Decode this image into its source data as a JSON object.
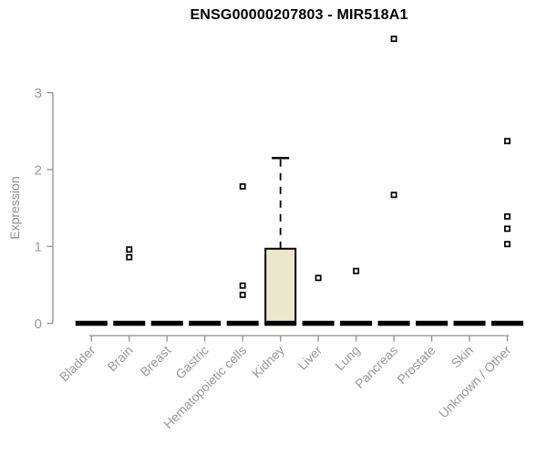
{
  "chart_data": {
    "type": "boxplot",
    "title": "ENSG00000207803 - MIR518A1",
    "ylabel": "Expression",
    "xlabel": "",
    "ylim": [
      0,
      3
    ],
    "yticks": [
      0,
      1,
      2,
      3
    ],
    "grid": false,
    "legend": false,
    "colors": {
      "box_fill": "#ECE8CE",
      "box_stroke": "#000000",
      "axis_line": "#8f8f8f",
      "axis_text": "#989898",
      "title_text": "#000000",
      "outlier_fill": "#ffffff",
      "outlier_stroke": "#000000"
    },
    "categories": [
      "Bladder",
      "Brain",
      "Breast",
      "Gastric",
      "Hematopoietic cells",
      "Kidney",
      "Liver",
      "Lung",
      "Pancreas",
      "Prostate",
      "Skin",
      "Unknown / Other"
    ],
    "groups": [
      {
        "label": "Bladder",
        "q1": 0,
        "median": 0,
        "q3": 0,
        "whisker_low": 0,
        "whisker_high": 0,
        "outliers": []
      },
      {
        "label": "Brain",
        "q1": 0,
        "median": 0,
        "q3": 0,
        "whisker_low": 0,
        "whisker_high": 0,
        "outliers": [
          0.96,
          0.86
        ]
      },
      {
        "label": "Breast",
        "q1": 0,
        "median": 0,
        "q3": 0,
        "whisker_low": 0,
        "whisker_high": 0,
        "outliers": []
      },
      {
        "label": "Gastric",
        "q1": 0,
        "median": 0,
        "q3": 0,
        "whisker_low": 0,
        "whisker_high": 0,
        "outliers": []
      },
      {
        "label": "Hematopoietic cells",
        "q1": 0,
        "median": 0,
        "q3": 0,
        "whisker_low": 0,
        "whisker_high": 0,
        "outliers": [
          1.78,
          0.49,
          0.37
        ]
      },
      {
        "label": "Kidney",
        "q1": 0,
        "median": 0,
        "q3": 0.97,
        "whisker_low": 0,
        "whisker_high": 2.15,
        "outliers": []
      },
      {
        "label": "Liver",
        "q1": 0,
        "median": 0,
        "q3": 0,
        "whisker_low": 0,
        "whisker_high": 0,
        "outliers": [
          0.59
        ]
      },
      {
        "label": "Lung",
        "q1": 0,
        "median": 0,
        "q3": 0,
        "whisker_low": 0,
        "whisker_high": 0,
        "outliers": [
          0.68
        ]
      },
      {
        "label": "Pancreas",
        "q1": 0,
        "median": 0,
        "q3": 0,
        "whisker_low": 0,
        "whisker_high": 0,
        "outliers": [
          1.67,
          3.7
        ]
      },
      {
        "label": "Prostate",
        "q1": 0,
        "median": 0,
        "q3": 0,
        "whisker_low": 0,
        "whisker_high": 0,
        "outliers": []
      },
      {
        "label": "Skin",
        "q1": 0,
        "median": 0,
        "q3": 0,
        "whisker_low": 0,
        "whisker_high": 0,
        "outliers": []
      },
      {
        "label": "Unknown / Other",
        "q1": 0,
        "median": 0,
        "q3": 0,
        "whisker_low": 0,
        "whisker_high": 0,
        "outliers": [
          2.37,
          1.39,
          1.23,
          1.03
        ]
      }
    ]
  }
}
